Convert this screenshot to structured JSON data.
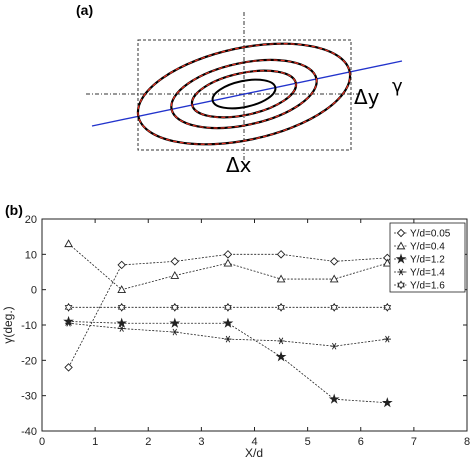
{
  "panels": {
    "a": {
      "label": "(a)",
      "dx_label": "Δx",
      "dy_label": "Δy",
      "gamma_label": "γ"
    },
    "b": {
      "label": "(b)"
    }
  },
  "chart_data": {
    "type": "line",
    "xlabel": "X/d",
    "ylabel": "γ(deg.)",
    "xlim": [
      0,
      8
    ],
    "ylim": [
      -40,
      20
    ],
    "xticks": [
      0,
      1,
      2,
      3,
      4,
      5,
      6,
      7,
      8
    ],
    "yticks": [
      -40,
      -30,
      -20,
      -10,
      0,
      10,
      20
    ],
    "grid": false,
    "legend_position": "top-right",
    "x": [
      0.5,
      1.5,
      2.5,
      3.5,
      4.5,
      5.5,
      6.5
    ],
    "series": [
      {
        "name": "Y/d=0.05",
        "marker": "diamond",
        "values": [
          -22,
          7,
          8,
          10,
          10,
          8,
          9
        ]
      },
      {
        "name": "Y/d=0.4",
        "marker": "triangle",
        "values": [
          13,
          0,
          4,
          7.5,
          3,
          3,
          7.5
        ]
      },
      {
        "name": "Y/d=1.2",
        "marker": "star",
        "values": [
          -9,
          -9.5,
          -9.5,
          -9.5,
          -19,
          -31,
          -32
        ]
      },
      {
        "name": "Y/d=1.4",
        "marker": "asterisk",
        "values": [
          -9.5,
          -11,
          -12,
          -14,
          -14.5,
          -16,
          -14
        ]
      },
      {
        "name": "Y/d=1.6",
        "marker": "hexagram",
        "values": [
          -5,
          -5,
          -5,
          -5,
          -5,
          -5,
          -5
        ]
      }
    ]
  }
}
